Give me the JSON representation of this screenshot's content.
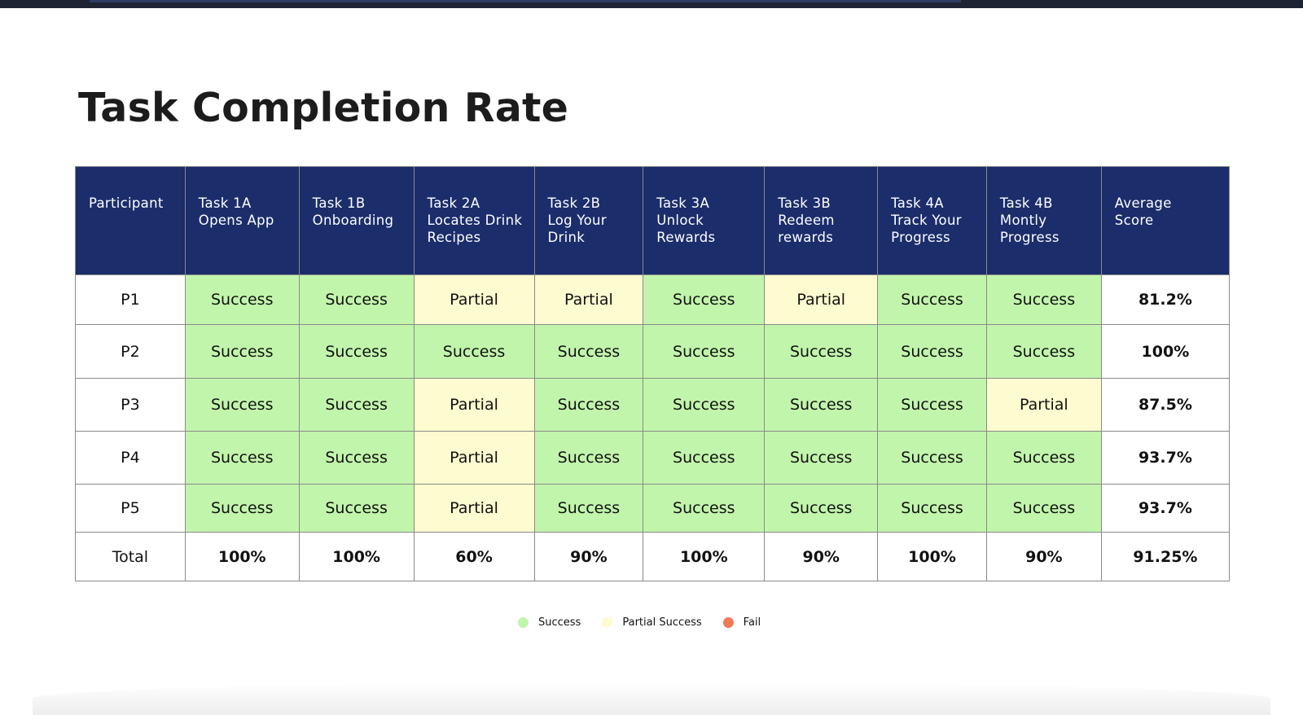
{
  "title": "Task Completion Rate",
  "table": {
    "headers": [
      [
        "Participant"
      ],
      [
        "Task 1A",
        "Opens App"
      ],
      [
        "Task 1B",
        "Onboarding"
      ],
      [
        "Task 2A",
        "Locates Drink",
        "Recipes"
      ],
      [
        "Task 2B",
        "Log Your",
        "Drink"
      ],
      [
        "Task 3A",
        "Unlock",
        "Rewards"
      ],
      [
        "Task 3B",
        "Redeem",
        "rewards"
      ],
      [
        "Task 4A",
        "Track Your",
        "Progress"
      ],
      [
        "Task 4B",
        "Montly",
        "Progress"
      ],
      [
        "Average",
        "Score"
      ]
    ],
    "rows": [
      {
        "participant": "P1",
        "results": [
          "Success",
          "Success",
          "Partial",
          "Partial",
          "Success",
          "Partial",
          "Success",
          "Success"
        ],
        "average": "81.2%"
      },
      {
        "participant": "P2",
        "results": [
          "Success",
          "Success",
          "Success",
          "Success",
          "Success",
          "Success",
          "Success",
          "Success"
        ],
        "average": "100%"
      },
      {
        "participant": "P3",
        "results": [
          "Success",
          "Success",
          "Partial",
          "Success",
          "Success",
          "Success",
          "Success",
          "Partial"
        ],
        "average": "87.5%"
      },
      {
        "participant": "P4",
        "results": [
          "Success",
          "Success",
          "Partial",
          "Success",
          "Success",
          "Success",
          "Success",
          "Success"
        ],
        "average": "93.7%"
      },
      {
        "participant": "P5",
        "results": [
          "Success",
          "Success",
          "Partial",
          "Success",
          "Success",
          "Success",
          "Success",
          "Success"
        ],
        "average": "93.7%"
      }
    ],
    "total": {
      "label": "Total",
      "values": [
        "100%",
        "100%",
        "60%",
        "90%",
        "100%",
        "90%",
        "100%",
        "90%"
      ],
      "average": "91.25%"
    }
  },
  "legend": [
    {
      "label": "Success",
      "color": "#c2f5ac"
    },
    {
      "label": "Partial Success",
      "color": "#fdfbcf"
    },
    {
      "label": "Fail",
      "color": "#f07a5a"
    }
  ],
  "colors": {
    "header_bg": "#1b2d6b",
    "success": "#c2f5ac",
    "partial": "#fdfbcf"
  }
}
